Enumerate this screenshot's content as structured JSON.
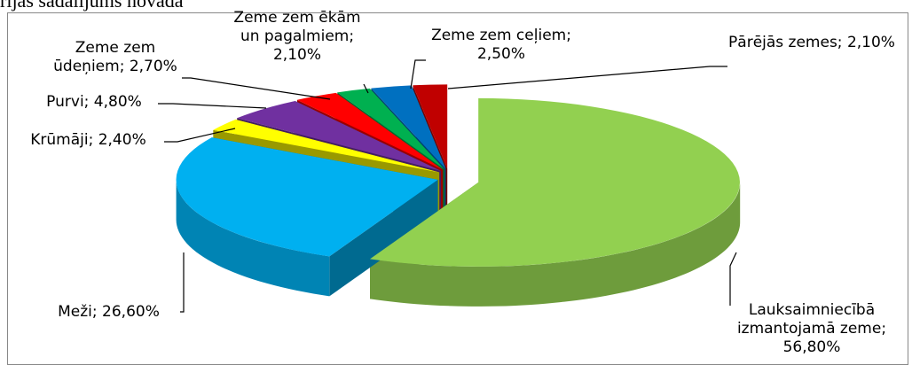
{
  "chart_data": {
    "type": "pie3d",
    "caption": "rijas sadalījums novadā",
    "values": [
      56.8,
      26.6,
      2.4,
      4.8,
      2.7,
      2.1,
      2.5,
      2.1
    ],
    "value_labels": [
      "Lauksaimniecībā izmantojamā zeme; 56,80%",
      "Meži; 26,60%",
      "Krūmāji; 2,40%",
      "Purvi; 4,80%",
      "Zeme zem ūdeņiem; 2,70%",
      "Zeme zem ēkām un pagalmiem; 2,10%",
      "Zeme zem ceļiem; 2,50%",
      "Pārējās zemes; 2,10%"
    ],
    "colors": [
      "#92d050",
      "#00b0f0",
      "#ffff00",
      "#7030a0",
      "#ff0000",
      "#00b050",
      "#0070c0",
      "#c00000"
    ]
  }
}
